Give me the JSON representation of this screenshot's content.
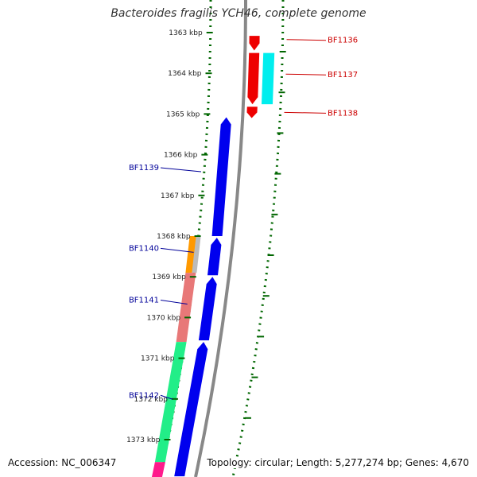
{
  "title": "Bacteroides fragilis YCH46, complete genome",
  "footer": {
    "accession": "Accession: NC_006347",
    "summary": "Topology: circular; Length: 5,277,274 bp; Genes: 4,670"
  },
  "colors": {
    "strand_left": "#0000ee",
    "strand_right": "#ee0000",
    "backbone": "#888888",
    "dots": "#006600",
    "label_left": "#000099",
    "label_right": "#cc0000",
    "tick_text": "#222222"
  },
  "ticks": [
    {
      "pos": 1363,
      "label": "1363 kbp"
    },
    {
      "pos": 1364,
      "label": "1364 kbp"
    },
    {
      "pos": 1365,
      "label": "1365 kbp"
    },
    {
      "pos": 1366,
      "label": "1366 kbp"
    },
    {
      "pos": 1367,
      "label": "1367 kbp"
    },
    {
      "pos": 1368,
      "label": "1368 kbp"
    },
    {
      "pos": 1369,
      "label": "1369 kbp"
    },
    {
      "pos": 1370,
      "label": "1370 kbp"
    },
    {
      "pos": 1371,
      "label": "1371 kbp"
    },
    {
      "pos": 1372,
      "label": "1372 kbp"
    },
    {
      "pos": 1373,
      "label": "1373 kbp"
    }
  ],
  "genes": [
    {
      "label": "BF1136",
      "strand": "+",
      "start": 1363.08,
      "end": 1363.44,
      "color": "#ee0000",
      "label_pos": 1363.17
    },
    {
      "label": "BF1137",
      "strand": "+",
      "start": 1363.5,
      "end": 1364.76,
      "color": "#ee0000",
      "label_pos": 1364.02
    },
    {
      "label": "BF1138",
      "strand": "+",
      "start": 1364.82,
      "end": 1365.1,
      "color": "#ee0000",
      "label_pos": 1364.96
    },
    {
      "label": "BF1139",
      "strand": "-",
      "start": 1365.08,
      "end": 1368.0,
      "color": "#0000ee",
      "label_pos": 1366.38
    },
    {
      "label": "BF1140",
      "strand": "-",
      "start": 1368.04,
      "end": 1368.96,
      "color": "#0000ee",
      "label_pos": 1368.36
    },
    {
      "label": "BF1141",
      "strand": "-",
      "start": 1369.0,
      "end": 1370.56,
      "color": "#0000ee",
      "label_pos": 1369.63
    },
    {
      "label": "BF1142",
      "strand": "-",
      "start": 1370.6,
      "end": 1373.9,
      "color": "#0000ee",
      "label_pos": 1371.97
    }
  ],
  "features": [
    {
      "track": "right",
      "start": 1363.5,
      "end": 1364.76,
      "color": "#00eeee"
    },
    {
      "track": "left",
      "start": 1368.0,
      "end": 1368.9,
      "color": "#ff9900"
    },
    {
      "track": "left2",
      "start": 1368.0,
      "end": 1368.9,
      "color": "#bbbbbb"
    },
    {
      "track": "left",
      "start": 1368.9,
      "end": 1370.6,
      "color": "#e87878"
    },
    {
      "track": "left",
      "start": 1370.6,
      "end": 1373.55,
      "color": "#22ee88"
    },
    {
      "track": "left",
      "start": 1373.55,
      "end": 1374.0,
      "color": "#ff1a8c"
    }
  ]
}
